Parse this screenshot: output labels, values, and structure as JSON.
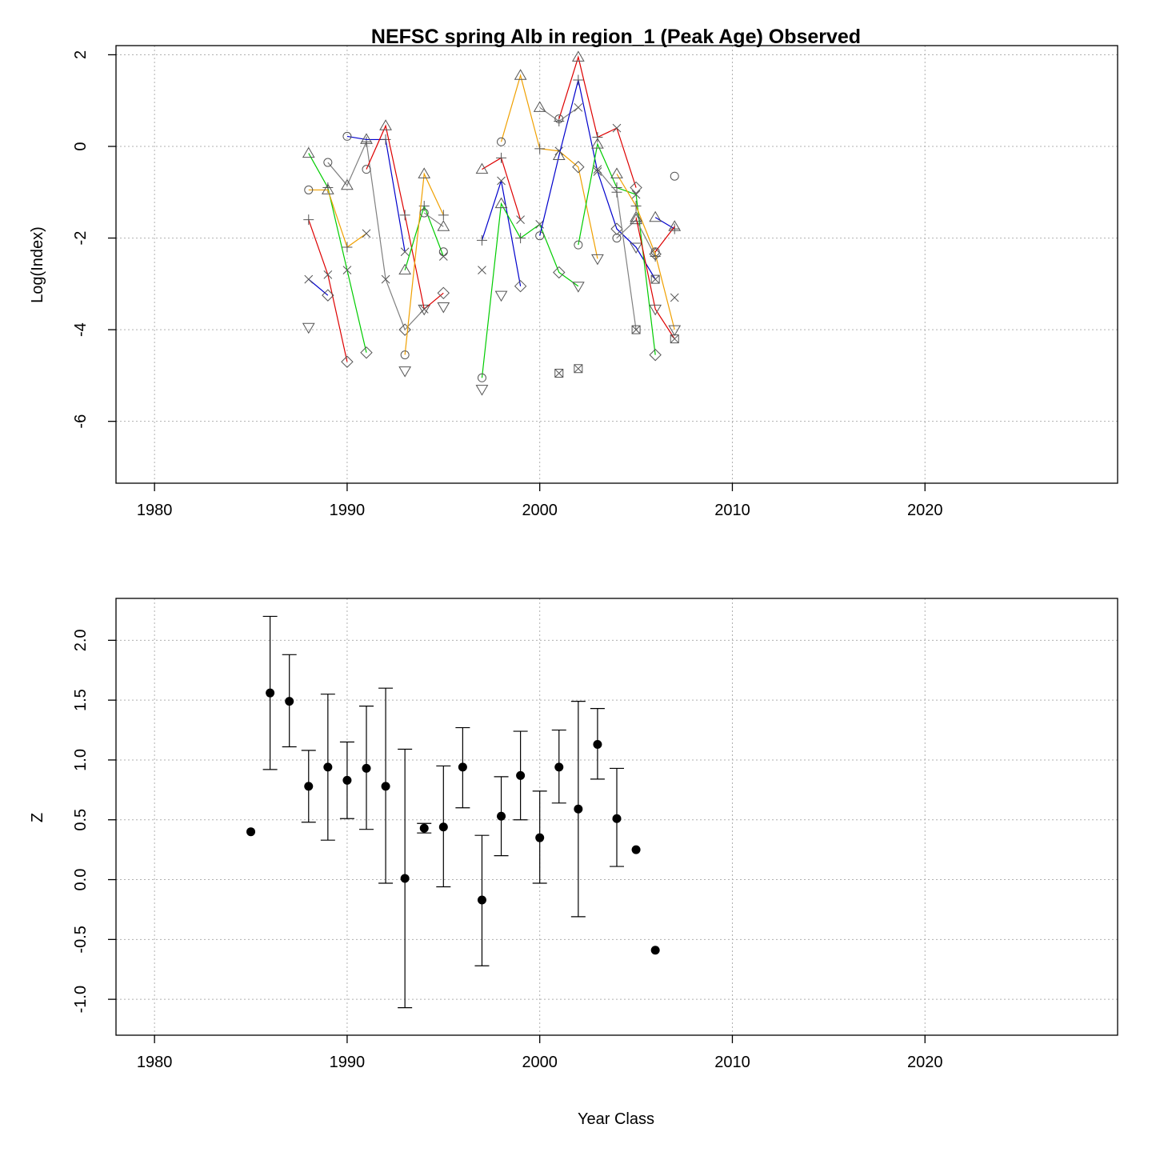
{
  "chart_data": [
    {
      "type": "line",
      "title": "NEFSC spring Alb in region_1 (Peak Age) Observed",
      "xlabel": "",
      "ylabel": "Log(Index)",
      "xlim": [
        1978,
        2030
      ],
      "ylim": [
        -7.35,
        2.2
      ],
      "x_ticks": [
        "1980",
        "1990",
        "2000",
        "2010",
        "2020"
      ],
      "y_ticks": [
        "2",
        "0",
        "-2",
        "-4",
        "-6"
      ],
      "grid": true,
      "colors": {
        "red": "#dd0000",
        "orange": "#f0a000",
        "green": "#00cc00",
        "blue": "#0000cc",
        "gray": "#808080"
      },
      "symbols_note_keys": [
        "circle",
        "triangle",
        "plus",
        "x",
        "diamond",
        "triangle-down",
        "boxed-x"
      ],
      "series": [
        {
          "color": "red",
          "points": [
            [
              1988,
              -1.6,
              "plus"
            ],
            [
              1989,
              -2.8,
              "x"
            ],
            [
              1990,
              -4.7,
              "diamond"
            ]
          ]
        },
        {
          "color": "blue",
          "points": [
            [
              1988,
              -2.9,
              "x"
            ],
            [
              1989,
              -3.25,
              "diamond"
            ]
          ]
        },
        {
          "color": "green",
          "points": [
            [
              1988,
              -0.15,
              "triangle"
            ],
            [
              1989,
              -0.9,
              "plus"
            ],
            [
              1990,
              -2.7,
              "x"
            ],
            [
              1991,
              -4.5,
              "diamond"
            ]
          ]
        },
        {
          "color": "orange",
          "points": [
            [
              1988,
              -0.95,
              "circle"
            ],
            [
              1989,
              -0.95,
              "triangle"
            ],
            [
              1990,
              -2.2,
              "plus"
            ],
            [
              1991,
              -1.9,
              "x"
            ]
          ]
        },
        {
          "color": "gray",
          "points": [
            [
              1989,
              -0.35,
              "circle"
            ],
            [
              1990,
              -0.85,
              "triangle"
            ],
            [
              1991,
              0.1,
              "plus"
            ],
            [
              1992,
              -2.9,
              "x"
            ],
            [
              1993,
              -4.0,
              "diamond"
            ],
            [
              1994,
              -3.55,
              "triangle-down"
            ]
          ]
        },
        {
          "color": "blue",
          "points": [
            [
              1990,
              0.22,
              "circle"
            ],
            [
              1991,
              0.15,
              "triangle"
            ],
            [
              1992,
              0.15,
              "plus"
            ],
            [
              1993,
              -2.3,
              "x"
            ]
          ]
        },
        {
          "color": "red",
          "points": [
            [
              1991,
              -0.5,
              "circle"
            ],
            [
              1992,
              0.45,
              "triangle"
            ],
            [
              1993,
              -1.5,
              "plus"
            ],
            [
              1994,
              -3.55,
              "x"
            ],
            [
              1995,
              -3.2,
              "diamond"
            ]
          ]
        },
        {
          "color": "green",
          "points": [
            [
              1993,
              -2.7,
              "triangle"
            ],
            [
              1994,
              -1.3,
              "plus"
            ],
            [
              1995,
              -2.4,
              "x"
            ]
          ]
        },
        {
          "color": "orange",
          "points": [
            [
              1993,
              -4.55,
              "circle"
            ],
            [
              1994,
              -0.6,
              "triangle"
            ],
            [
              1995,
              -1.5,
              "plus"
            ]
          ]
        },
        {
          "color": "gray",
          "points": [
            [
              1994,
              -1.45,
              "circle"
            ],
            [
              1995,
              -1.75,
              "triangle"
            ]
          ]
        },
        {
          "color": "red",
          "points": [
            [
              1997,
              -0.5,
              "triangle"
            ],
            [
              1998,
              -0.25,
              "plus"
            ],
            [
              1999,
              -1.6,
              "x"
            ]
          ]
        },
        {
          "color": "blue",
          "points": [
            [
              1997,
              -2.05,
              "plus"
            ],
            [
              1998,
              -0.75,
              "x"
            ],
            [
              1999,
              -3.05,
              "diamond"
            ]
          ]
        },
        {
          "color": "green",
          "points": [
            [
              1997,
              -5.05,
              "circle"
            ],
            [
              1998,
              -1.25,
              "triangle"
            ],
            [
              1999,
              -2.0,
              "plus"
            ],
            [
              2000,
              -1.7,
              "x"
            ],
            [
              2001,
              -2.75,
              "diamond"
            ],
            [
              2002,
              -3.05,
              "triangle-down"
            ]
          ]
        },
        {
          "color": "orange",
          "points": [
            [
              1998,
              0.1,
              "circle"
            ],
            [
              1999,
              1.55,
              "triangle"
            ],
            [
              2000,
              -0.05,
              "plus"
            ],
            [
              2001,
              -0.1,
              "x"
            ],
            [
              2002,
              -0.45,
              "diamond"
            ],
            [
              2003,
              -2.45,
              "triangle-down"
            ]
          ]
        },
        {
          "color": "gray",
          "points": [
            [
              2000,
              0.85,
              "triangle"
            ],
            [
              2001,
              0.55,
              "plus"
            ],
            [
              2002,
              0.85,
              "x"
            ]
          ]
        },
        {
          "color": "blue",
          "points": [
            [
              2000,
              -1.95,
              "circle"
            ],
            [
              2001,
              -0.2,
              "triangle"
            ],
            [
              2002,
              1.45,
              "plus"
            ],
            [
              2003,
              -0.55,
              "x"
            ],
            [
              2004,
              -1.8,
              "diamond"
            ],
            [
              2005,
              -2.2,
              "triangle-down"
            ],
            [
              2006,
              -2.9,
              "boxed-x"
            ]
          ]
        },
        {
          "color": "red",
          "points": [
            [
              2001,
              0.6,
              "circle"
            ],
            [
              2002,
              1.95,
              "triangle"
            ],
            [
              2003,
              0.2,
              "plus"
            ],
            [
              2004,
              0.4,
              "x"
            ],
            [
              2005,
              -0.9,
              "diamond"
            ]
          ]
        },
        {
          "color": "green",
          "points": [
            [
              2002,
              -2.15,
              "circle"
            ],
            [
              2003,
              0.05,
              "triangle"
            ],
            [
              2004,
              -0.9,
              "plus"
            ],
            [
              2005,
              -1.05,
              "x"
            ],
            [
              2006,
              -4.55,
              "diamond"
            ]
          ]
        },
        {
          "color": "gray",
          "points": [
            [
              2004,
              -2.0,
              "circle"
            ],
            [
              2005,
              -1.6,
              "triangle"
            ],
            [
              2006,
              -2.4,
              "plus"
            ]
          ]
        },
        {
          "color": "gray",
          "points": [
            [
              2003,
              -0.5,
              "x"
            ],
            [
              2004,
              -1.0,
              "plus"
            ],
            [
              2005,
              -4.0,
              "boxed-x"
            ]
          ]
        },
        {
          "color": "orange",
          "points": [
            [
              2004,
              -0.6,
              "triangle"
            ],
            [
              2005,
              -1.3,
              "plus"
            ],
            [
              2006,
              -2.35,
              "diamond"
            ],
            [
              2007,
              -4.0,
              "triangle-down"
            ]
          ]
        },
        {
          "color": "red",
          "points": [
            [
              2005,
              -1.55,
              "triangle"
            ],
            [
              2006,
              -3.55,
              "triangle-down"
            ],
            [
              2007,
              -4.2,
              "boxed-x"
            ]
          ]
        },
        {
          "color": "blue",
          "points": [
            [
              2006,
              -1.55,
              "triangle"
            ],
            [
              2007,
              -1.8,
              "plus"
            ]
          ]
        },
        {
          "color": "red",
          "points": [
            [
              2006,
              -2.3,
              "circle"
            ],
            [
              2007,
              -1.75,
              "triangle"
            ]
          ]
        },
        {
          "color": "gray",
          "points": [
            [
              2007,
              -3.3,
              "x"
            ]
          ]
        },
        {
          "color": "gray",
          "points": [
            [
              2007,
              -0.65,
              "circle"
            ]
          ]
        },
        {
          "color": "gray",
          "points": [
            [
              1988,
              -3.95,
              "triangle-down"
            ]
          ]
        },
        {
          "color": "gray",
          "points": [
            [
              1993,
              -4.9,
              "triangle-down"
            ]
          ]
        },
        {
          "color": "gray",
          "points": [
            [
              1995,
              -3.5,
              "triangle-down"
            ]
          ]
        },
        {
          "color": "gray",
          "points": [
            [
              1995,
              -2.3,
              "circle"
            ]
          ]
        },
        {
          "color": "gray",
          "points": [
            [
              1997,
              -5.3,
              "triangle-down"
            ]
          ]
        },
        {
          "color": "gray",
          "points": [
            [
              1997,
              -2.7,
              "x"
            ]
          ]
        },
        {
          "color": "gray",
          "points": [
            [
              1998,
              -3.25,
              "triangle-down"
            ]
          ]
        },
        {
          "color": "gray",
          "points": [
            [
              2001,
              -4.95,
              "boxed-x"
            ]
          ]
        },
        {
          "color": "gray",
          "points": [
            [
              2002,
              -4.85,
              "boxed-x"
            ]
          ]
        }
      ]
    },
    {
      "type": "scatter",
      "title": "",
      "xlabel": "Year Class",
      "ylabel": "Z",
      "xlim": [
        1978,
        2030
      ],
      "ylim": [
        -1.3,
        2.35
      ],
      "x_ticks": [
        "1980",
        "1990",
        "2000",
        "2010",
        "2020"
      ],
      "y_ticks": [
        "2.0",
        "1.5",
        "1.0",
        "0.5",
        "0.0",
        "-0.5",
        "-1.0"
      ],
      "grid": true,
      "points": [
        {
          "x": 1985,
          "y": 0.4
        },
        {
          "x": 1986,
          "y": 1.56,
          "lo": 0.92,
          "hi": 2.2
        },
        {
          "x": 1987,
          "y": 1.49,
          "lo": 1.11,
          "hi": 1.88
        },
        {
          "x": 1988,
          "y": 0.78,
          "lo": 0.48,
          "hi": 1.08
        },
        {
          "x": 1989,
          "y": 0.94,
          "lo": 0.33,
          "hi": 1.55
        },
        {
          "x": 1990,
          "y": 0.83,
          "lo": 0.51,
          "hi": 1.15
        },
        {
          "x": 1991,
          "y": 0.93,
          "lo": 0.42,
          "hi": 1.45
        },
        {
          "x": 1992,
          "y": 0.78,
          "lo": -0.03,
          "hi": 1.6
        },
        {
          "x": 1993,
          "y": 0.01,
          "lo": -1.07,
          "hi": 1.09
        },
        {
          "x": 1994,
          "y": 0.43,
          "lo": 0.39,
          "hi": 0.47
        },
        {
          "x": 1995,
          "y": 0.44,
          "lo": -0.06,
          "hi": 0.95
        },
        {
          "x": 1996,
          "y": 0.94,
          "lo": 0.6,
          "hi": 1.27
        },
        {
          "x": 1997,
          "y": -0.17,
          "lo": -0.72,
          "hi": 0.37
        },
        {
          "x": 1998,
          "y": 0.53,
          "lo": 0.2,
          "hi": 0.86
        },
        {
          "x": 1999,
          "y": 0.87,
          "lo": 0.5,
          "hi": 1.24
        },
        {
          "x": 2000,
          "y": 0.35,
          "lo": -0.03,
          "hi": 0.74
        },
        {
          "x": 2001,
          "y": 0.94,
          "lo": 0.64,
          "hi": 1.25
        },
        {
          "x": 2002,
          "y": 0.59,
          "lo": -0.31,
          "hi": 1.49
        },
        {
          "x": 2003,
          "y": 1.13,
          "lo": 0.84,
          "hi": 1.43
        },
        {
          "x": 2004,
          "y": 0.51,
          "lo": 0.11,
          "hi": 0.93
        },
        {
          "x": 2005,
          "y": 0.25
        },
        {
          "x": 2006,
          "y": -0.59
        }
      ]
    }
  ]
}
